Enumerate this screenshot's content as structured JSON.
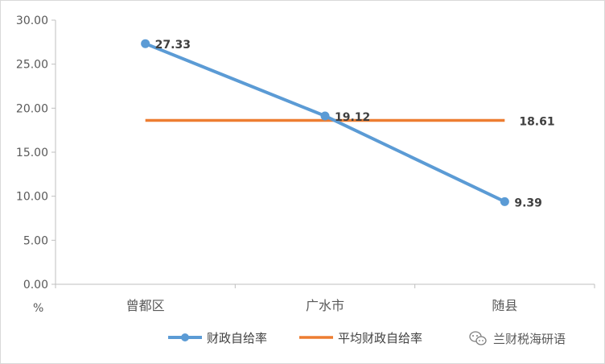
{
  "chart_data": {
    "type": "line",
    "categories": [
      "曾都区",
      "广水市",
      "随县"
    ],
    "ylabel": "%",
    "ylim": [
      0,
      30
    ],
    "yticks": [
      "0.00",
      "5.00",
      "10.00",
      "15.00",
      "20.00",
      "25.00",
      "30.00"
    ],
    "grid": false,
    "legend_position": "bottom",
    "series": [
      {
        "name": "财政自给率",
        "values": [
          27.33,
          19.12,
          9.39
        ],
        "labels": [
          "27.33",
          "19.12",
          "9.39"
        ],
        "color": "#5b9bd5",
        "marker": "circle"
      },
      {
        "name": "平均财政自给率",
        "values": [
          18.61,
          18.61,
          18.61
        ],
        "labels": [
          "",
          "",
          "18.61"
        ],
        "color": "#ed7d31",
        "marker": "none"
      }
    ]
  },
  "watermark": {
    "text": "兰财税海研语",
    "icon": "wechat-icon",
    "color": "#595959"
  }
}
